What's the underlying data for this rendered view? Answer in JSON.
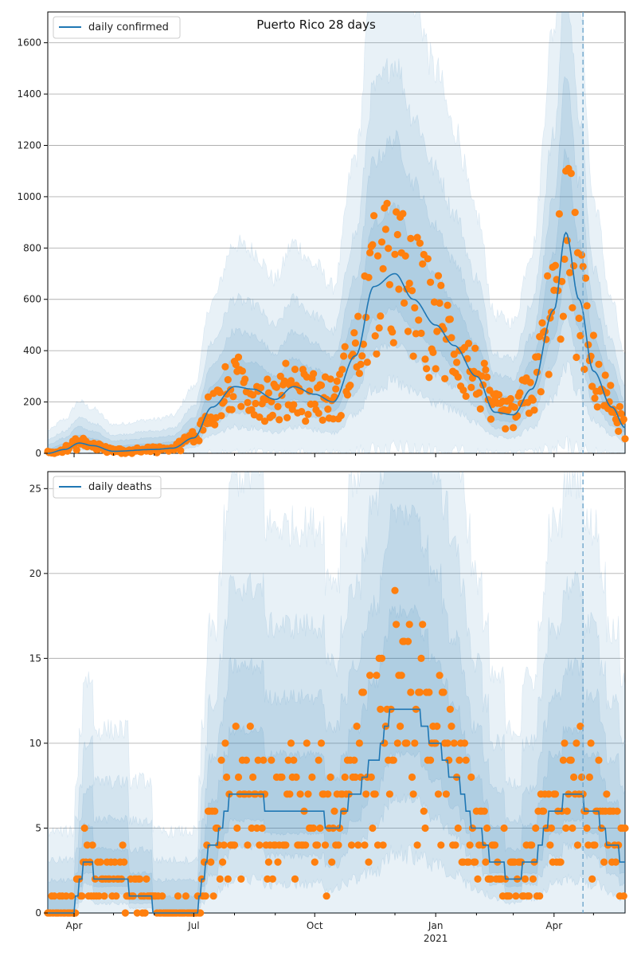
{
  "chart_data": [
    {
      "type": "line",
      "title": "Puerto Rico 28 days",
      "legend": {
        "label": "daily confirmed",
        "placement": "top-left"
      },
      "x_range": [
        "2020-03-12",
        "2021-05-25"
      ],
      "ylim": [
        0,
        1720
      ],
      "yticks": [
        0,
        200,
        400,
        600,
        800,
        1000,
        1200,
        1400,
        1600
      ],
      "grid": "horizontal",
      "vline_date": "2021-04-23",
      "colors": {
        "line": "#1f77b4",
        "points": "#ff7f0e",
        "band": "#1f77b4"
      },
      "series_keypoints": [
        [
          "2020-03-12",
          0
        ],
        [
          "2020-03-25",
          15
        ],
        [
          "2020-04-05",
          40
        ],
        [
          "2020-04-15",
          30
        ],
        [
          "2020-05-01",
          8
        ],
        [
          "2020-06-01",
          15
        ],
        [
          "2020-06-15",
          20
        ],
        [
          "2020-07-01",
          60
        ],
        [
          "2020-07-15",
          180
        ],
        [
          "2020-08-01",
          260
        ],
        [
          "2020-08-15",
          250
        ],
        [
          "2020-09-01",
          210
        ],
        [
          "2020-09-15",
          260
        ],
        [
          "2020-10-01",
          230
        ],
        [
          "2020-10-15",
          200
        ],
        [
          "2020-11-01",
          380
        ],
        [
          "2020-11-15",
          650
        ],
        [
          "2020-12-01",
          700
        ],
        [
          "2020-12-15",
          600
        ],
        [
          "2021-01-01",
          500
        ],
        [
          "2021-01-15",
          420
        ],
        [
          "2021-02-01",
          300
        ],
        [
          "2021-02-15",
          160
        ],
        [
          "2021-03-01",
          150
        ],
        [
          "2021-03-15",
          250
        ],
        [
          "2021-04-01",
          560
        ],
        [
          "2021-04-10",
          860
        ],
        [
          "2021-04-20",
          600
        ],
        [
          "2021-05-01",
          320
        ],
        [
          "2021-05-15",
          180
        ],
        [
          "2021-05-25",
          100
        ]
      ],
      "band_scale": [
        0.35,
        0.7,
        1.1,
        1.8
      ],
      "point_scatter": 0.32
    },
    {
      "type": "line",
      "title": "",
      "legend": {
        "label": "daily deaths",
        "placement": "top-left"
      },
      "x_range": [
        "2020-03-12",
        "2021-05-25"
      ],
      "ylim": [
        0,
        26
      ],
      "yticks": [
        0,
        5,
        10,
        15,
        20,
        25
      ],
      "grid": "horizontal",
      "vline_date": "2021-04-23",
      "colors": {
        "line": "#1f77b4",
        "points": "#ff7f0e",
        "band": "#1f77b4"
      },
      "series_keypoints": [
        [
          "2020-03-12",
          0
        ],
        [
          "2020-03-30",
          0
        ],
        [
          "2020-04-10",
          3
        ],
        [
          "2020-04-20",
          2
        ],
        [
          "2020-05-05",
          2
        ],
        [
          "2020-05-20",
          1
        ],
        [
          "2020-06-10",
          0
        ],
        [
          "2020-07-01",
          0
        ],
        [
          "2020-07-15",
          4
        ],
        [
          "2020-08-01",
          7
        ],
        [
          "2020-08-15",
          7
        ],
        [
          "2020-09-01",
          6
        ],
        [
          "2020-09-20",
          6
        ],
        [
          "2020-10-01",
          6
        ],
        [
          "2020-10-15",
          5
        ],
        [
          "2020-11-01",
          7
        ],
        [
          "2020-11-15",
          9
        ],
        [
          "2020-12-01",
          12
        ],
        [
          "2020-12-15",
          12
        ],
        [
          "2021-01-01",
          10
        ],
        [
          "2021-01-15",
          8
        ],
        [
          "2021-02-01",
          5
        ],
        [
          "2021-02-15",
          3
        ],
        [
          "2021-03-01",
          2
        ],
        [
          "2021-03-15",
          3
        ],
        [
          "2021-04-01",
          6
        ],
        [
          "2021-04-15",
          7
        ],
        [
          "2021-05-01",
          6
        ],
        [
          "2021-05-15",
          4
        ],
        [
          "2021-05-25",
          3
        ]
      ],
      "band_scale": [
        0.4,
        0.8,
        1.3,
        2.0
      ],
      "point_scatter": 0.45
    }
  ],
  "x_axis": {
    "tick_labels": [
      {
        "date": "2020-04-01",
        "label": "Apr"
      },
      {
        "date": "2020-07-01",
        "label": "Jul"
      },
      {
        "date": "2020-10-01",
        "label": "Oct"
      },
      {
        "date": "2021-01-01",
        "label": "Jan"
      },
      {
        "date": "2021-04-01",
        "label": "Apr"
      }
    ],
    "year_label": {
      "date": "2021-01-01",
      "label": "2021"
    }
  }
}
